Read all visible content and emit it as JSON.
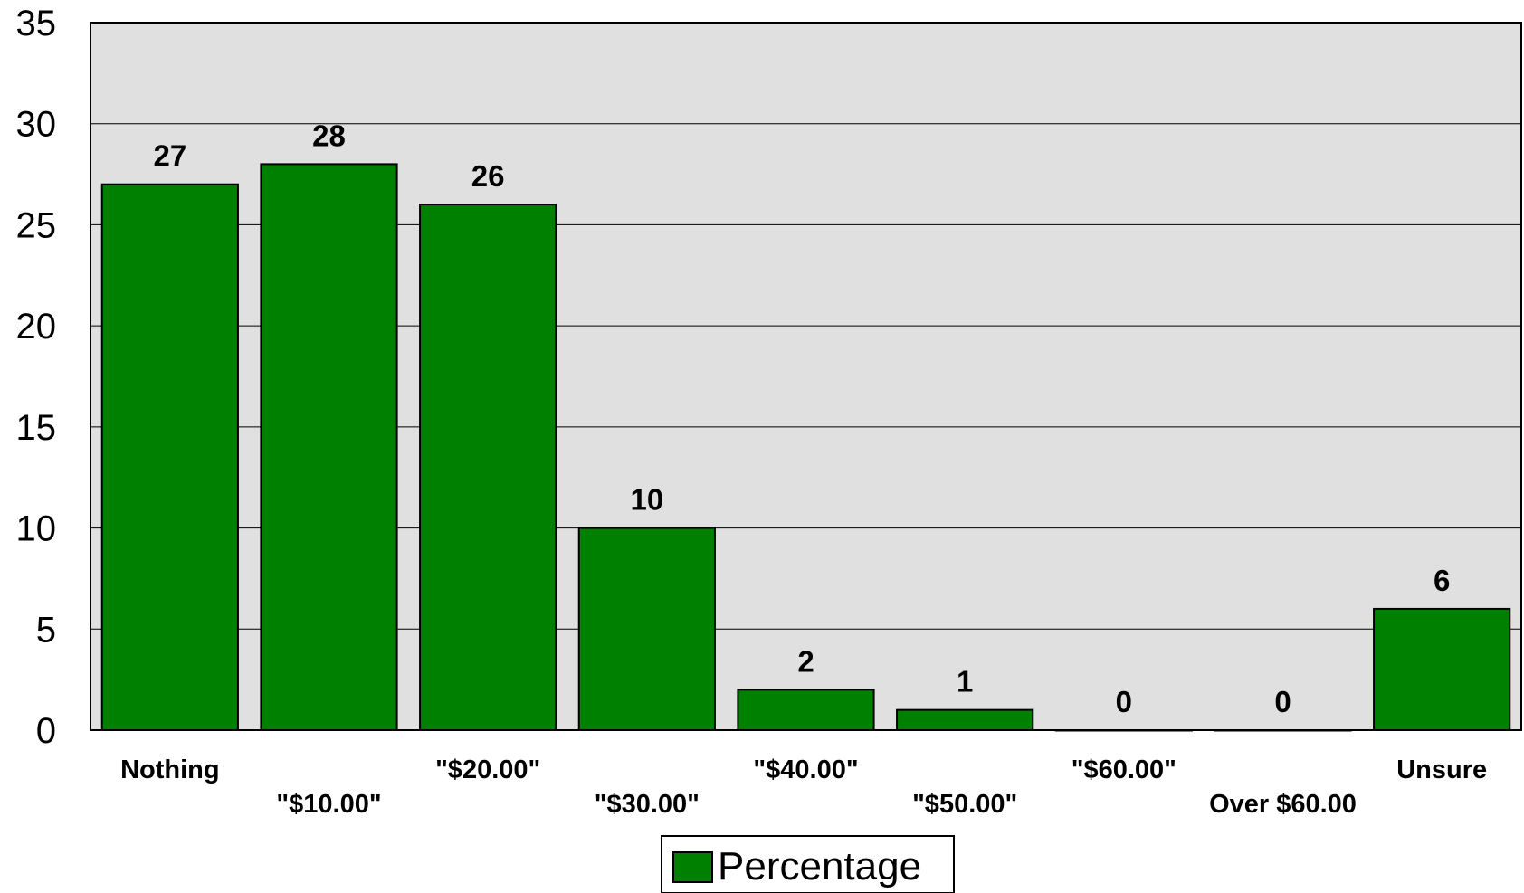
{
  "chart_data": {
    "type": "bar",
    "categories": [
      "Nothing",
      "\"$10.00\"",
      "\"$20.00\"",
      "\"$30.00\"",
      "\"$40.00\"",
      "\"$50.00\"",
      "\"$60.00\"",
      "Over $60.00",
      "Unsure"
    ],
    "series": [
      {
        "name": "Percentage",
        "values": [
          27,
          28,
          26,
          10,
          2,
          1,
          0,
          0,
          6
        ]
      }
    ],
    "data_labels": [
      "27",
      "28",
      "26",
      "10",
      "2",
      "1",
      "0",
      "0",
      "6"
    ],
    "ylim": [
      0,
      35
    ],
    "yticks": [
      0,
      5,
      10,
      15,
      20,
      25,
      30,
      35
    ],
    "ytick_labels": [
      "0",
      "5",
      "10",
      "15",
      "20",
      "25",
      "30",
      "35"
    ],
    "grid": true,
    "legend_position": "bottom-center",
    "colors": {
      "bar": "#008000",
      "plot_background": "#e0e0e0",
      "border": "#000000"
    }
  }
}
